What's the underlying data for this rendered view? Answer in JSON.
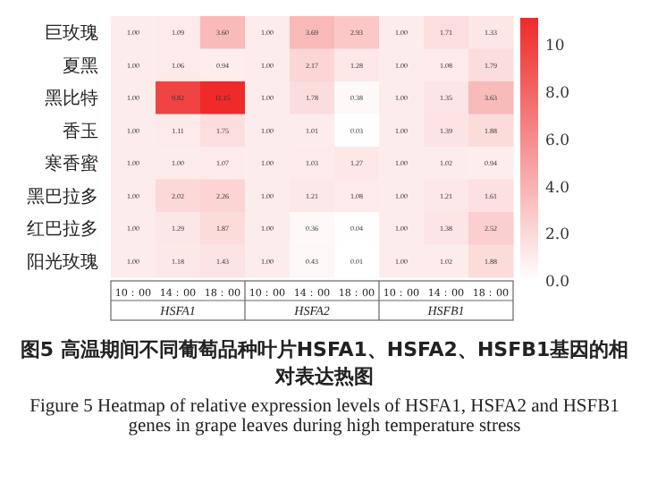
{
  "chart_data": {
    "type": "heatmap",
    "title": "图5 高温期间不同葡萄品种叶片HSFA1、HSFA2、HSFB1基因的相对表达热图",
    "subtitle": "Figure 5  Heatmap of relative expression levels of HSFA1, HSFA2 and HSFB1 genes in grape leaves during high temperature stress",
    "categories": [
      "10：00",
      "14：00",
      "18：00",
      "10：00",
      "14：00",
      "18：00",
      "10：00",
      "14：00",
      "18：00"
    ],
    "y_categories": [
      "巨玫瑰",
      "夏黑",
      "黑比特",
      "香玉",
      "寒香蜜",
      "黑巴拉多",
      "红巴拉多",
      "阳光玫瑰"
    ],
    "annotations": [
      "HSFA1",
      "HSFA2",
      "HSFB1"
    ],
    "cells": [
      [
        1.0,
        1.09,
        3.6,
        1.0,
        3.69,
        2.93,
        1.0,
        1.71,
        1.33
      ],
      [
        1.0,
        1.06,
        0.94,
        1.0,
        2.17,
        1.28,
        1.0,
        1.08,
        1.79
      ],
      [
        1.0,
        9.82,
        11.15,
        1.0,
        1.78,
        0.38,
        1.0,
        1.35,
        3.63
      ],
      [
        1.0,
        1.11,
        1.75,
        1.0,
        1.01,
        0.03,
        1.0,
        1.39,
        1.88
      ],
      [
        1.0,
        1.0,
        1.07,
        1.0,
        1.03,
        1.27,
        1.0,
        1.02,
        0.94
      ],
      [
        1.0,
        2.02,
        2.26,
        1.0,
        1.21,
        1.08,
        1.0,
        1.21,
        1.61
      ],
      [
        1.0,
        1.29,
        1.87,
        1.0,
        0.36,
        0.04,
        1.0,
        1.38,
        2.52
      ],
      [
        1.0,
        1.18,
        1.43,
        1.0,
        0.43,
        0.01,
        1.0,
        1.02,
        1.88
      ]
    ],
    "cell_labels": [
      [
        "1.00",
        "1.09",
        "3.60",
        "1.00",
        "3.69",
        "2.93",
        "1.00",
        "1.71",
        "1.33"
      ],
      [
        "1.00",
        "1.06",
        "0.94",
        "1.00",
        "2.17",
        "1.28",
        "1.00",
        "1.08",
        "1.79"
      ],
      [
        "1.00",
        "9.82",
        "11.15",
        "1.00",
        "1.78",
        "0.38",
        "1.00",
        "1.35",
        "3.63"
      ],
      [
        "1.00",
        "1.11",
        "1.75",
        "1.00",
        "1.01",
        "0.03",
        "1.00",
        "1.39",
        "1.88"
      ],
      [
        "1.00",
        "1.00",
        "1.07",
        "1.00",
        "1.03",
        "1.27",
        "1.00",
        "1.02",
        "0.94"
      ],
      [
        "1.00",
        "2.02",
        "2.26",
        "1.00",
        "1.21",
        "1.08",
        "1.00",
        "1.21",
        "1.61"
      ],
      [
        "1.00",
        "1.29",
        "1.87",
        "1.00",
        "0.36",
        "0.04",
        "1.00",
        "1.38",
        "2.52"
      ],
      [
        "1.00",
        "1.18",
        "1.43",
        "1.00",
        "0.43",
        "0.01",
        "1.00",
        "1.02",
        "1.88"
      ]
    ],
    "clim": [
      0,
      11.15
    ],
    "cticks": [
      {
        "value": 0,
        "label": "0.0"
      },
      {
        "value": 2,
        "label": "2.0"
      },
      {
        "value": 4,
        "label": "4.0"
      },
      {
        "value": 6,
        "label": "6.0"
      },
      {
        "value": 8,
        "label": "8.0"
      },
      10
    ]
  }
}
